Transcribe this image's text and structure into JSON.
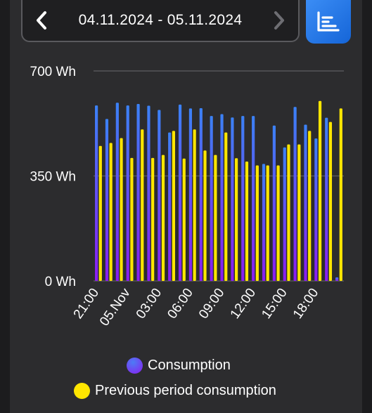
{
  "header": {
    "date_range": "04.11.2024 - 05.11.2024",
    "prev_icon": "chevron-left-icon",
    "next_icon": "chevron-right-icon",
    "view_toggle_icon": "bar-chart-list-icon"
  },
  "colors": {
    "consumption_top": "#3b82f6",
    "consumption_bottom": "#8b1cf0",
    "previous": "#ffe600",
    "accent": "#2f80ed"
  },
  "chart_data": {
    "type": "bar",
    "ylim": [
      0,
      700
    ],
    "y_ticks": [
      "700 Wh",
      "350 Wh",
      "0 Wh"
    ],
    "y_tick_values": [
      700,
      350,
      0
    ],
    "x_tick_labels": [
      {
        "label": "21:00",
        "index": 0
      },
      {
        "label": "05.Nov",
        "index": 3
      },
      {
        "label": "03:00",
        "index": 6
      },
      {
        "label": "06:00",
        "index": 9
      },
      {
        "label": "09:00",
        "index": 12
      },
      {
        "label": "12:00",
        "index": 15
      },
      {
        "label": "15:00",
        "index": 18
      },
      {
        "label": "18:00",
        "index": 21
      }
    ],
    "grid": true,
    "legend_position": "bottom",
    "series": [
      {
        "name": "Consumption",
        "values": [
          585,
          540,
          594,
          585,
          590,
          584,
          570,
          495,
          588,
          575,
          576,
          550,
          556,
          545,
          550,
          550,
          390,
          518,
          445,
          580,
          521,
          475,
          544,
          12
        ]
      },
      {
        "name": "Previous period consumption",
        "values": [
          450,
          460,
          476,
          410,
          505,
          410,
          420,
          500,
          408,
          505,
          435,
          420,
          495,
          409,
          398,
          385,
          385,
          385,
          455,
          455,
          500,
          600,
          530,
          575
        ]
      }
    ]
  },
  "legend": {
    "consumption_label": "Consumption",
    "previous_label": "Previous period consumption"
  }
}
